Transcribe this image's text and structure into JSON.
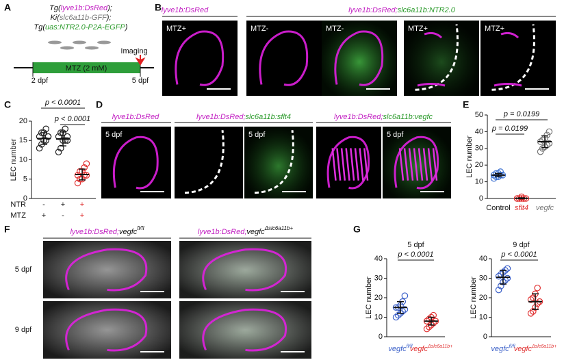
{
  "panel_letters": [
    "A",
    "B",
    "C",
    "D",
    "E",
    "F",
    "G"
  ],
  "panel_a": {
    "genotype_lines": [
      [
        {
          "text": "Tg(",
          "color": "#111"
        },
        {
          "text": "lyve1b:DsRed",
          "color": "#c21fc2"
        },
        {
          "text": ");",
          "color": "#111"
        }
      ],
      [
        {
          "text": "Ki(",
          "color": "#111"
        },
        {
          "text": "slc6a11b-GFF",
          "color": "#777"
        },
        {
          "text": ");",
          "color": "#111"
        }
      ],
      [
        {
          "text": "Tg(",
          "color": "#111"
        },
        {
          "text": "uas:NTR2.0-P2A-EGFP",
          "color": "#2a9a2a"
        },
        {
          "text": ")",
          "color": "#111"
        }
      ]
    ],
    "treatment": "MTZ (2 mM)",
    "event": "Imaging",
    "start": "2 dpf",
    "end": "5 dpf"
  },
  "panel_b": {
    "headers": [
      [
        {
          "text": "lyve1b:DsRed",
          "color": "#c21fc2"
        }
      ],
      [
        {
          "text": "lyve1b:DsRed;",
          "color": "#c21fc2"
        },
        {
          "text": "slc6a11b:NTR2.0",
          "color": "#2a9a2a"
        }
      ]
    ],
    "image_labels": [
      "MTZ+",
      "MTZ-",
      "MTZ-",
      "MTZ+",
      "MTZ+"
    ]
  },
  "panel_d": {
    "headers": [
      [
        {
          "text": "lyve1b:DsRed",
          "color": "#c21fc2"
        }
      ],
      [
        {
          "text": "lyve1b:DsRed;",
          "color": "#c21fc2"
        },
        {
          "text": "slc6a11b:sflt4",
          "color": "#2a9a2a"
        }
      ],
      [
        {
          "text": "lyve1b:DsRed;",
          "color": "#c21fc2"
        },
        {
          "text": "slc6a11b:vegfc",
          "color": "#2a9a2a"
        }
      ]
    ],
    "image_labels": [
      "5 dpf",
      "5 dpf",
      "5 dpf"
    ]
  },
  "panel_f": {
    "headers": [
      {
        "parts": [
          {
            "text": "lyve1b:DsRed;",
            "color": "#c21fc2"
          },
          {
            "text": "vegfc",
            "color": "#111"
          }
        ],
        "sup": "fl/fl"
      },
      {
        "parts": [
          {
            "text": "lyve1b:DsRed;",
            "color": "#c21fc2"
          },
          {
            "text": "vegfc",
            "color": "#111"
          }
        ],
        "sup": "Δslc6a11b+"
      }
    ],
    "row_labels": [
      "5 dpf",
      "9 dpf"
    ]
  },
  "chart_data": [
    {
      "type": "dotplot",
      "y_label": "LEC number",
      "ylim": [
        0,
        20
      ],
      "yticks": [
        0,
        5,
        10,
        15,
        20
      ],
      "annotations": [
        "p < 0.0001",
        "p < 0.0001"
      ],
      "condition_rows": [
        {
          "name": "NTR",
          "values": [
            "-",
            "+",
            "+"
          ]
        },
        {
          "name": "MTZ",
          "values": [
            "+",
            "-",
            "+"
          ]
        }
      ],
      "groups": [
        {
          "color": "#222",
          "values": [
            13,
            14,
            15,
            15,
            16,
            16,
            17,
            17,
            18,
            16
          ],
          "mean": 15.5,
          "sd": 1.5
        },
        {
          "color": "#222",
          "values": [
            12,
            13,
            15,
            15,
            16,
            16,
            17,
            17,
            18,
            15
          ],
          "mean": 15.4,
          "sd": 1.8
        },
        {
          "color": "#e03030",
          "values": [
            4,
            5,
            5,
            6,
            6,
            6,
            7,
            7,
            8,
            9
          ],
          "mean": 6.2,
          "sd": 1.4
        }
      ]
    },
    {
      "type": "dotplot",
      "y_label": "LEC number",
      "ylim": [
        0,
        50
      ],
      "yticks": [
        0,
        10,
        20,
        30,
        40,
        50
      ],
      "annotations": [
        "p = 0.0199",
        "p = 0.0199"
      ],
      "categories": [
        "Control",
        "sflt4",
        "vegfc"
      ],
      "category_colors": [
        "#111",
        "#e03030",
        "#777"
      ],
      "groups": [
        {
          "color": "#3a6fd0",
          "values": [
            12,
            13,
            13,
            14,
            14,
            14,
            15,
            15,
            16
          ],
          "mean": 14,
          "sd": 1
        },
        {
          "color": "#e03030",
          "values": [
            0,
            0,
            0,
            0,
            0,
            0,
            0,
            1,
            0
          ],
          "mean": 0.1,
          "sd": 0.3
        },
        {
          "color": "#777",
          "values": [
            28,
            30,
            31,
            32,
            33,
            34,
            35,
            36,
            38,
            40
          ],
          "mean": 34,
          "sd": 3.5
        }
      ]
    },
    {
      "type": "dotplot",
      "title": "5 dpf",
      "y_label": "LEC number",
      "ylim": [
        0,
        40
      ],
      "yticks": [
        0,
        10,
        20,
        30,
        40
      ],
      "annotations": [
        "p < 0.0001"
      ],
      "categories": [
        {
          "text": "vegfc",
          "sup": "fl/fl"
        },
        {
          "text": "vegfc",
          "sup": "Δslc6a11b+"
        }
      ],
      "groups": [
        {
          "color": "#3a5fc8",
          "values": [
            10,
            11,
            12,
            13,
            14,
            15,
            15,
            16,
            18,
            21
          ],
          "mean": 15,
          "sd": 3
        },
        {
          "color": "#e03030",
          "values": [
            4,
            5,
            6,
            7,
            8,
            8,
            9,
            10,
            11
          ],
          "mean": 8,
          "sd": 2
        }
      ]
    },
    {
      "type": "dotplot",
      "title": "9 dpf",
      "y_label": "LEC number",
      "ylim": [
        0,
        40
      ],
      "yticks": [
        0,
        10,
        20,
        30,
        40
      ],
      "annotations": [
        "p < 0.0001"
      ],
      "categories": [
        {
          "text": "vegfc",
          "sup": "fl/fl"
        },
        {
          "text": "vegfc",
          "sup": "Δslc6a11b+"
        }
      ],
      "groups": [
        {
          "color": "#3a5fc8",
          "values": [
            24,
            26,
            28,
            29,
            30,
            31,
            32,
            33,
            34,
            35
          ],
          "mean": 30.5,
          "sd": 3.5
        },
        {
          "color": "#e03030",
          "values": [
            12,
            13,
            15,
            17,
            18,
            19,
            20,
            22,
            25
          ],
          "mean": 18,
          "sd": 4
        }
      ]
    }
  ]
}
